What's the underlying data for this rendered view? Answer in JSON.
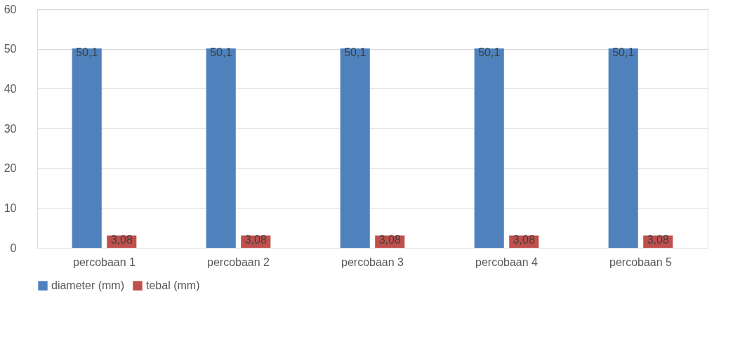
{
  "chart_data": {
    "type": "bar",
    "categories": [
      "percobaan 1",
      "percobaan 2",
      "percobaan 3",
      "percobaan 4",
      "percobaan 5"
    ],
    "series": [
      {
        "name": "diameter (mm)",
        "color": "#4f81bd",
        "values": [
          50.1,
          50.1,
          50.1,
          50.1,
          50.1
        ],
        "value_labels": [
          "50,1",
          "50,1",
          "50,1",
          "50,1",
          "50,1"
        ]
      },
      {
        "name": "tebal (mm)",
        "color": "#c0504d",
        "values": [
          3.08,
          3.08,
          3.08,
          3.08,
          3.08
        ],
        "value_labels": [
          "3,08",
          "3,08",
          "3,08",
          "3,08",
          "3,08"
        ]
      }
    ],
    "ylim": [
      0,
      60
    ],
    "yticks": [
      0,
      10,
      20,
      30,
      40,
      50,
      60
    ],
    "grid": "y",
    "legend": "bottom"
  }
}
